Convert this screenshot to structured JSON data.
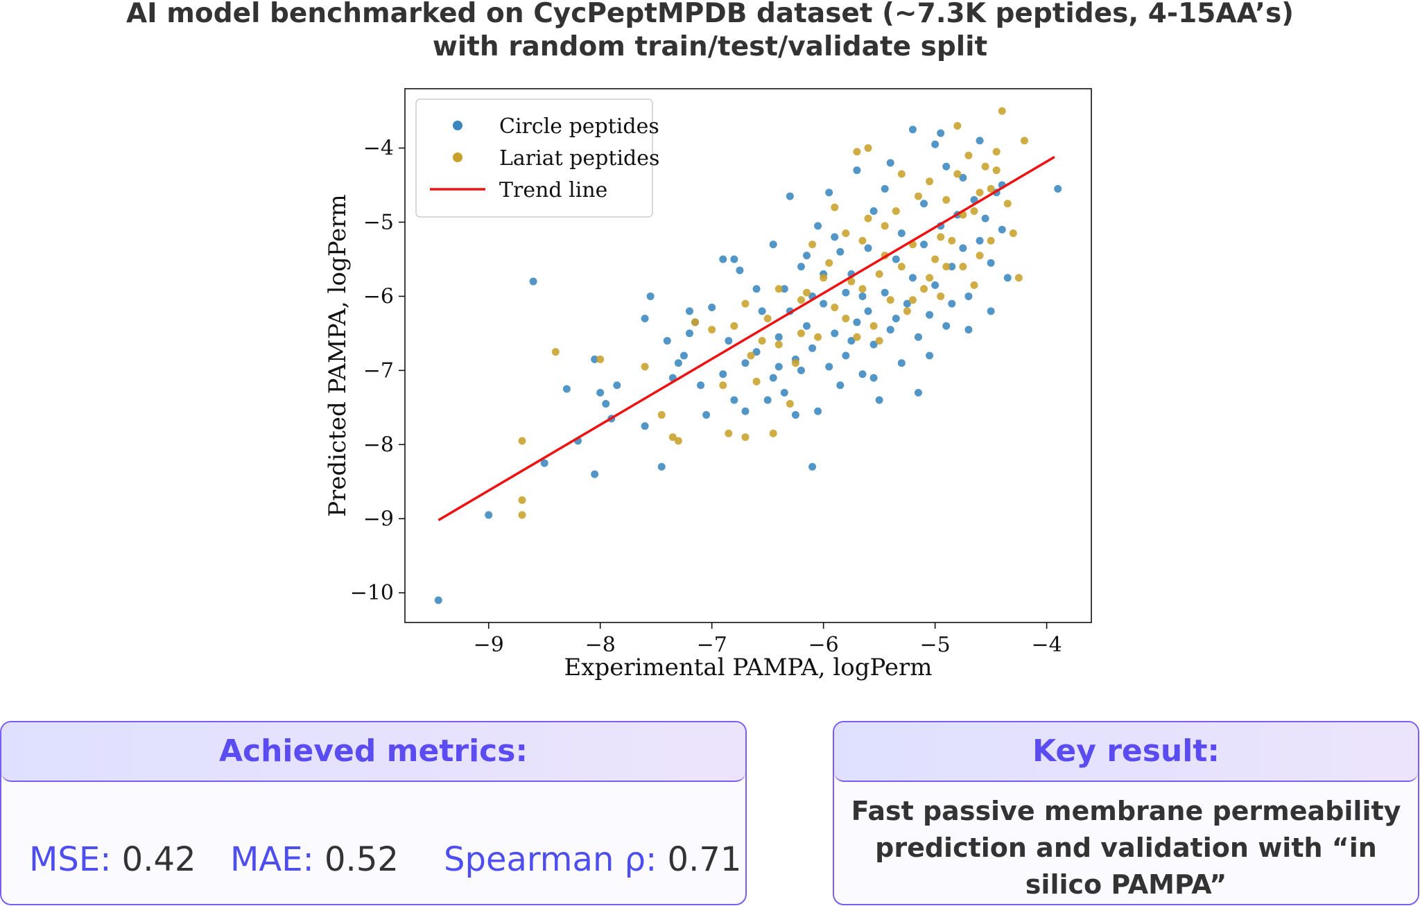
{
  "header": {
    "title_line1": "AI model benchmarked on CycPeptMPDB dataset (~7.3K peptides, 4-15AA’s)",
    "title_line2": "with random train/test/validate split"
  },
  "chart_data": {
    "type": "scatter",
    "xlabel": "Experimental PAMPA, logPerm",
    "ylabel": "Predicted PAMPA, logPerm",
    "xlim": [
      -9.75,
      -3.6
    ],
    "ylim": [
      -10.4,
      -3.2
    ],
    "xticks": [
      -9,
      -8,
      -7,
      -6,
      -5,
      -4
    ],
    "yticks": [
      -10,
      -9,
      -8,
      -7,
      -6,
      -5,
      -4
    ],
    "xtick_labels": [
      "−9",
      "−8",
      "−7",
      "−6",
      "−5",
      "−4"
    ],
    "ytick_labels": [
      "−10",
      "−9",
      "−8",
      "−7",
      "−6",
      "−5",
      "−4"
    ],
    "legend_position": "top-left",
    "colors": {
      "circle": "#3a86bf",
      "lariat": "#c9a02a",
      "trend": "#ee1111"
    },
    "series": [
      {
        "name": "Circle peptides",
        "points": [
          [
            -9.45,
            -10.1
          ],
          [
            -9.0,
            -8.95
          ],
          [
            -8.6,
            -5.8
          ],
          [
            -8.5,
            -8.25
          ],
          [
            -8.3,
            -7.25
          ],
          [
            -8.2,
            -7.95
          ],
          [
            -8.05,
            -8.4
          ],
          [
            -8.0,
            -7.3
          ],
          [
            -7.95,
            -7.45
          ],
          [
            -7.9,
            -7.65
          ],
          [
            -7.85,
            -7.2
          ],
          [
            -7.6,
            -7.75
          ],
          [
            -7.45,
            -8.3
          ],
          [
            -7.35,
            -7.1
          ],
          [
            -7.3,
            -6.9
          ],
          [
            -7.2,
            -6.5
          ],
          [
            -7.1,
            -7.2
          ],
          [
            -7.05,
            -7.6
          ],
          [
            -6.9,
            -7.05
          ],
          [
            -6.85,
            -6.6
          ],
          [
            -6.8,
            -7.4
          ],
          [
            -6.7,
            -6.9
          ],
          [
            -6.6,
            -6.75
          ],
          [
            -6.5,
            -7.4
          ],
          [
            -6.45,
            -7.1
          ],
          [
            -6.4,
            -6.55
          ],
          [
            -6.35,
            -7.3
          ],
          [
            -6.3,
            -6.2
          ],
          [
            -6.25,
            -6.85
          ],
          [
            -6.2,
            -7.0
          ],
          [
            -6.15,
            -6.4
          ],
          [
            -6.1,
            -6.7
          ],
          [
            -6.05,
            -7.55
          ],
          [
            -6.0,
            -6.1
          ],
          [
            -5.95,
            -6.95
          ],
          [
            -5.9,
            -6.5
          ],
          [
            -5.85,
            -7.2
          ],
          [
            -5.8,
            -6.8
          ],
          [
            -5.75,
            -5.7
          ],
          [
            -5.7,
            -6.35
          ],
          [
            -5.65,
            -7.05
          ],
          [
            -5.6,
            -6.2
          ],
          [
            -5.55,
            -6.65
          ],
          [
            -5.5,
            -7.4
          ],
          [
            -5.45,
            -5.95
          ],
          [
            -5.4,
            -6.45
          ],
          [
            -5.35,
            -5.5
          ],
          [
            -5.3,
            -6.9
          ],
          [
            -5.25,
            -6.1
          ],
          [
            -5.2,
            -5.75
          ],
          [
            -5.15,
            -6.55
          ],
          [
            -5.1,
            -5.3
          ],
          [
            -5.05,
            -6.25
          ],
          [
            -5.0,
            -5.85
          ],
          [
            -4.95,
            -5.05
          ],
          [
            -4.9,
            -6.4
          ],
          [
            -4.85,
            -5.6
          ],
          [
            -4.8,
            -4.9
          ],
          [
            -4.75,
            -5.35
          ],
          [
            -4.7,
            -6.0
          ],
          [
            -4.65,
            -4.7
          ],
          [
            -4.6,
            -5.25
          ],
          [
            -4.55,
            -4.95
          ],
          [
            -4.5,
            -5.55
          ],
          [
            -4.45,
            -4.6
          ],
          [
            -4.4,
            -5.1
          ],
          [
            -4.35,
            -5.75
          ],
          [
            -6.1,
            -8.3
          ],
          [
            -5.9,
            -5.2
          ],
          [
            -5.95,
            -4.6
          ],
          [
            -5.2,
            -3.75
          ],
          [
            -5.0,
            -3.95
          ],
          [
            -4.95,
            -3.8
          ],
          [
            -5.4,
            -4.2
          ],
          [
            -5.7,
            -4.3
          ],
          [
            -5.55,
            -4.85
          ],
          [
            -5.85,
            -5.4
          ],
          [
            -6.05,
            -5.05
          ],
          [
            -6.2,
            -5.6
          ],
          [
            -6.3,
            -4.65
          ],
          [
            -6.45,
            -5.3
          ],
          [
            -6.6,
            -5.9
          ],
          [
            -6.75,
            -5.65
          ],
          [
            -6.9,
            -5.5
          ],
          [
            -7.0,
            -6.15
          ],
          [
            -7.15,
            -6.35
          ],
          [
            -7.25,
            -6.8
          ],
          [
            -7.4,
            -6.6
          ],
          [
            -6.55,
            -6.2
          ],
          [
            -6.35,
            -5.9
          ],
          [
            -6.15,
            -5.45
          ],
          [
            -6.0,
            -5.7
          ],
          [
            -5.8,
            -5.95
          ],
          [
            -5.6,
            -5.35
          ],
          [
            -5.45,
            -4.55
          ],
          [
            -5.3,
            -5.15
          ],
          [
            -5.1,
            -4.75
          ],
          [
            -4.9,
            -4.25
          ],
          [
            -4.75,
            -4.4
          ],
          [
            -4.6,
            -3.9
          ],
          [
            -4.4,
            -4.5
          ],
          [
            -5.65,
            -6.0
          ],
          [
            -5.35,
            -6.3
          ],
          [
            -5.15,
            -7.3
          ],
          [
            -5.05,
            -6.8
          ],
          [
            -4.85,
            -6.1
          ],
          [
            -4.7,
            -6.45
          ],
          [
            -4.5,
            -6.2
          ],
          [
            -3.9,
            -4.55
          ],
          [
            -5.75,
            -6.6
          ],
          [
            -5.55,
            -7.1
          ],
          [
            -6.25,
            -7.6
          ],
          [
            -6.4,
            -6.95
          ],
          [
            -6.7,
            -7.55
          ],
          [
            -7.6,
            -6.3
          ],
          [
            -7.55,
            -6.0
          ],
          [
            -7.2,
            -6.2
          ],
          [
            -8.05,
            -6.85
          ],
          [
            -6.8,
            -5.5
          ],
          [
            -6.1,
            -6.0
          ]
        ]
      },
      {
        "name": "Lariat peptides",
        "points": [
          [
            -8.7,
            -7.95
          ],
          [
            -8.7,
            -8.75
          ],
          [
            -8.7,
            -8.95
          ],
          [
            -8.4,
            -6.75
          ],
          [
            -8.0,
            -6.85
          ],
          [
            -7.6,
            -6.95
          ],
          [
            -7.45,
            -7.6
          ],
          [
            -7.35,
            -7.9
          ],
          [
            -7.3,
            -7.95
          ],
          [
            -7.15,
            -6.35
          ],
          [
            -7.0,
            -6.45
          ],
          [
            -6.9,
            -7.2
          ],
          [
            -6.85,
            -7.85
          ],
          [
            -6.8,
            -6.4
          ],
          [
            -6.7,
            -7.9
          ],
          [
            -6.65,
            -6.8
          ],
          [
            -6.6,
            -7.15
          ],
          [
            -6.5,
            -6.3
          ],
          [
            -6.45,
            -7.85
          ],
          [
            -6.4,
            -6.65
          ],
          [
            -6.3,
            -7.45
          ],
          [
            -6.25,
            -6.9
          ],
          [
            -6.2,
            -6.05
          ],
          [
            -6.15,
            -5.95
          ],
          [
            -6.05,
            -6.55
          ],
          [
            -5.95,
            -5.55
          ],
          [
            -5.9,
            -6.15
          ],
          [
            -5.8,
            -5.15
          ],
          [
            -5.75,
            -5.8
          ],
          [
            -5.7,
            -6.55
          ],
          [
            -5.65,
            -5.25
          ],
          [
            -5.6,
            -4.95
          ],
          [
            -5.55,
            -6.4
          ],
          [
            -5.5,
            -5.7
          ],
          [
            -5.45,
            -5.05
          ],
          [
            -5.4,
            -6.05
          ],
          [
            -5.35,
            -4.85
          ],
          [
            -5.3,
            -5.6
          ],
          [
            -5.25,
            -6.2
          ],
          [
            -5.2,
            -5.3
          ],
          [
            -5.15,
            -4.65
          ],
          [
            -5.1,
            -5.9
          ],
          [
            -5.05,
            -4.45
          ],
          [
            -5.0,
            -5.5
          ],
          [
            -4.95,
            -6.0
          ],
          [
            -4.9,
            -4.7
          ],
          [
            -4.85,
            -5.25
          ],
          [
            -4.8,
            -4.35
          ],
          [
            -4.75,
            -5.6
          ],
          [
            -4.7,
            -4.1
          ],
          [
            -4.65,
            -4.85
          ],
          [
            -4.6,
            -5.45
          ],
          [
            -4.55,
            -4.25
          ],
          [
            -4.5,
            -4.55
          ],
          [
            -4.45,
            -4.05
          ],
          [
            -4.4,
            -3.5
          ],
          [
            -4.35,
            -4.75
          ],
          [
            -4.3,
            -5.15
          ],
          [
            -4.25,
            -5.75
          ],
          [
            -4.2,
            -3.9
          ],
          [
            -4.8,
            -3.7
          ],
          [
            -5.6,
            -4.0
          ],
          [
            -5.7,
            -4.05
          ],
          [
            -6.2,
            -6.5
          ],
          [
            -6.4,
            -5.9
          ],
          [
            -6.55,
            -6.6
          ],
          [
            -6.7,
            -6.1
          ],
          [
            -6.1,
            -5.3
          ],
          [
            -5.9,
            -4.8
          ],
          [
            -5.8,
            -6.3
          ],
          [
            -5.5,
            -6.6
          ],
          [
            -5.3,
            -4.35
          ],
          [
            -5.05,
            -5.75
          ],
          [
            -4.95,
            -5.2
          ],
          [
            -4.75,
            -4.9
          ],
          [
            -4.6,
            -4.6
          ],
          [
            -4.5,
            -5.25
          ],
          [
            -4.45,
            -4.3
          ],
          [
            -4.65,
            -5.85
          ],
          [
            -4.9,
            -5.6
          ],
          [
            -5.2,
            -6.05
          ],
          [
            -5.45,
            -5.45
          ],
          [
            -5.65,
            -5.9
          ],
          [
            -6.0,
            -5.75
          ]
        ]
      },
      {
        "name": "Trend line",
        "line": [
          [
            -9.45,
            -9.02
          ],
          [
            -3.93,
            -4.12
          ]
        ]
      }
    ]
  },
  "metrics_panel": {
    "title": "Achieved metrics:",
    "mse_label": "MSE:",
    "mse_value": "0.42",
    "mae_label": "MAE:",
    "mae_value": "0.52",
    "spearman_label": "Spearman ρ:",
    "spearman_value": "0.71"
  },
  "result_panel": {
    "title": "Key result:",
    "line1": "Fast passive membrane permeability",
    "line2": "prediction and validation with “in",
    "line3": "silico PAMPA”"
  }
}
